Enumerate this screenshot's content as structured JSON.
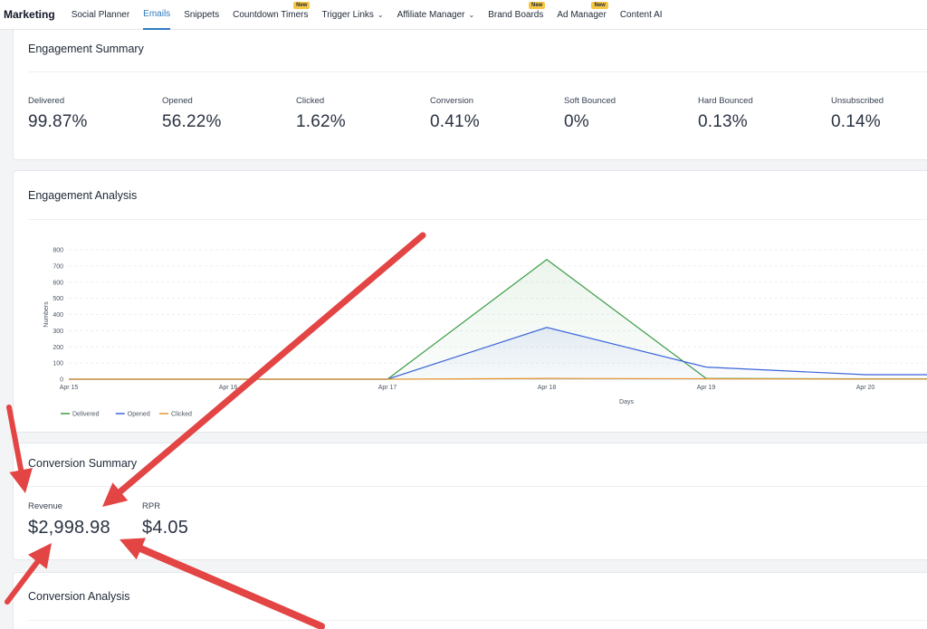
{
  "nav": {
    "brand": "Marketing",
    "items": [
      {
        "label": "Social Planner"
      },
      {
        "label": "Emails"
      },
      {
        "label": "Snippets"
      },
      {
        "label": "Countdown Timers",
        "badge": "New"
      },
      {
        "label": "Trigger Links"
      },
      {
        "label": "Affiliate Manager"
      },
      {
        "label": "Brand Boards",
        "badge": "New"
      },
      {
        "label": "Ad Manager",
        "badge": "New"
      },
      {
        "label": "Content AI"
      }
    ]
  },
  "engagement_summary": {
    "title": "Engagement Summary",
    "stats": [
      {
        "label": "Delivered",
        "value": "99.87%"
      },
      {
        "label": "Opened",
        "value": "56.22%"
      },
      {
        "label": "Clicked",
        "value": "1.62%"
      },
      {
        "label": "Conversion",
        "value": "0.41%"
      },
      {
        "label": "Soft Bounced",
        "value": "0%"
      },
      {
        "label": "Hard Bounced",
        "value": "0.13%"
      },
      {
        "label": "Unsubscribed",
        "value": "0.14%"
      }
    ]
  },
  "engagement_analysis": {
    "title": "Engagement Analysis"
  },
  "chart_data": {
    "type": "line",
    "xlabel": "Days",
    "ylabel": "Numbers",
    "categories": [
      "Apr 15",
      "Apr 16",
      "Apr 17",
      "Apr 18",
      "Apr 19",
      "Apr 20"
    ],
    "ylim": [
      0,
      800
    ],
    "yticks": [
      0,
      100,
      200,
      300,
      400,
      500,
      600,
      700,
      800
    ],
    "legend_position": "bottom-left",
    "series": [
      {
        "name": "Delivered",
        "color": "#3d9b47",
        "values": [
          0,
          0,
          0,
          740,
          5,
          2
        ],
        "fill": true
      },
      {
        "name": "Opened",
        "color": "#3b64d8",
        "values": [
          0,
          0,
          0,
          320,
          75,
          28
        ],
        "fill": true
      },
      {
        "name": "Clicked",
        "color": "#e6952f",
        "values": [
          0,
          0,
          0,
          5,
          3,
          1
        ],
        "fill": false
      }
    ]
  },
  "conversion_summary": {
    "title": "Conversion Summary",
    "stats": [
      {
        "label": "Revenue",
        "value": "$2,998.98"
      },
      {
        "label": "RPR",
        "value": "$4.05"
      }
    ]
  },
  "conversion_analysis": {
    "title": "Conversion Analysis"
  },
  "annotation_color": "#e34444"
}
